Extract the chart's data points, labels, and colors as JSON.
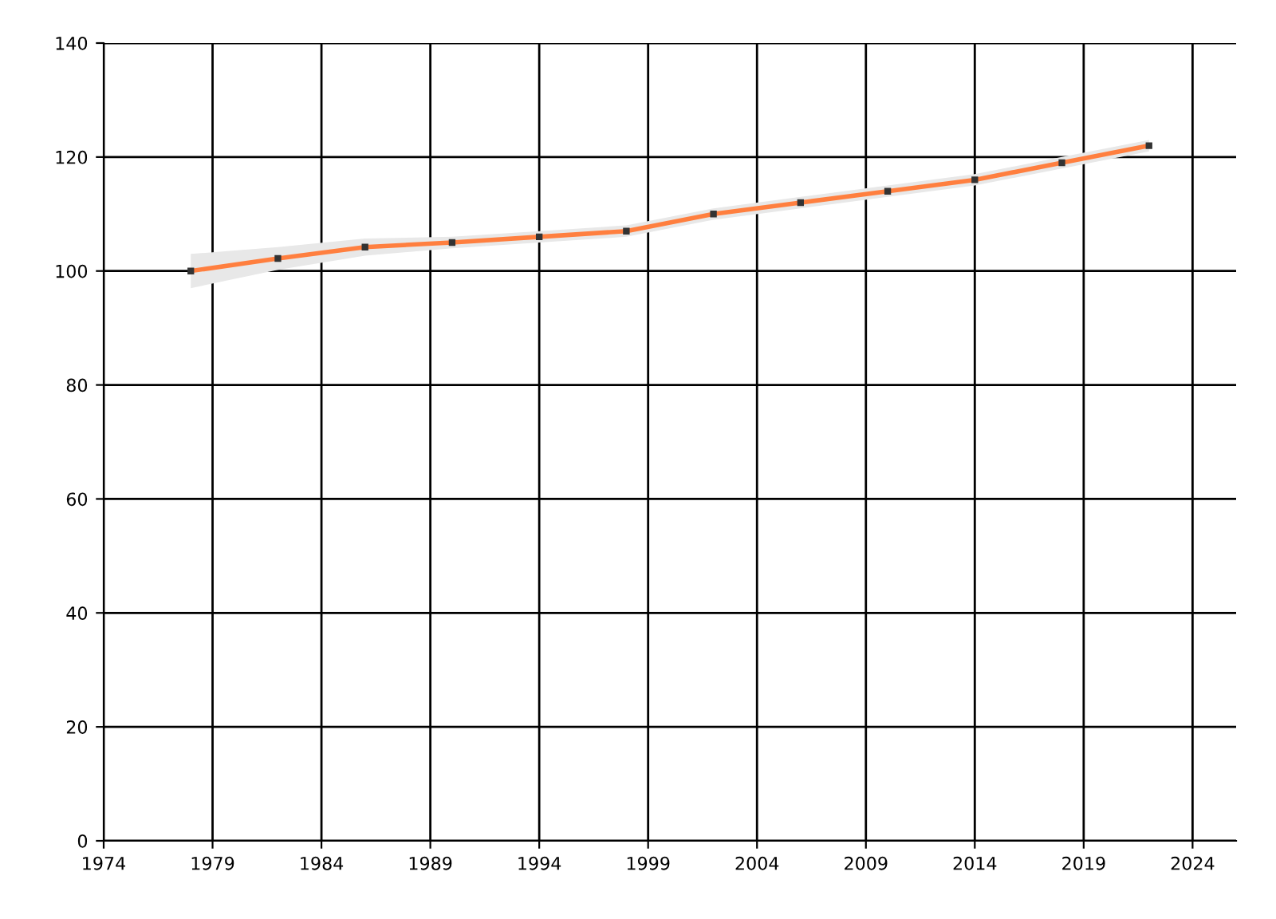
{
  "chart_data": {
    "type": "line",
    "x": [
      1978,
      1982,
      1986,
      1990,
      1994,
      1998,
      2002,
      2006,
      2010,
      2014,
      2018,
      2022
    ],
    "series": [
      {
        "color": "#ff7f3f",
        "values": [
          100,
          102.2,
          104.2,
          105,
          106,
          107,
          110,
          112,
          114,
          116,
          119,
          122
        ],
        "lower": [
          97,
          100.2,
          102.7,
          104,
          105,
          106,
          109,
          111,
          113,
          115,
          118,
          121
        ],
        "upper": [
          103,
          104.2,
          105.7,
          106,
          107,
          108,
          111,
          113,
          115,
          117,
          120,
          123
        ]
      }
    ],
    "marker": "square",
    "xlim": [
      1974,
      2026
    ],
    "xticks": [
      1974,
      1979,
      1984,
      1989,
      1994,
      1999,
      2004,
      2009,
      2014,
      2019,
      2024
    ],
    "ylim": [
      0,
      140
    ],
    "yticks": [
      0,
      20,
      40,
      60,
      80,
      100,
      120,
      140
    ],
    "grid": true
  }
}
